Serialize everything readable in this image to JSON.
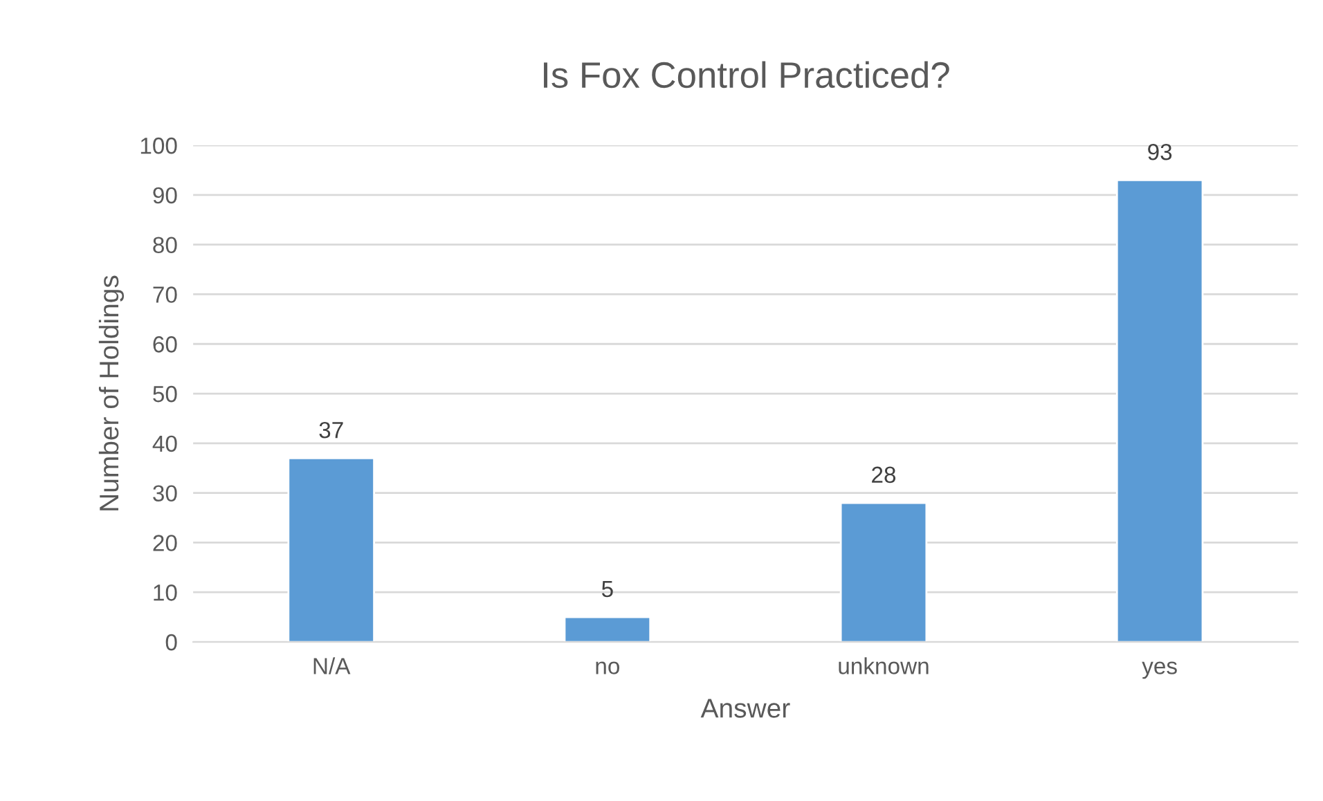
{
  "chart_data": {
    "type": "bar",
    "title": "Is Fox Control Practiced?",
    "xlabel": "Answer",
    "ylabel": "Number of Holdings",
    "categories": [
      "N/A",
      "no",
      "unknown",
      "yes"
    ],
    "values": [
      37,
      5,
      28,
      93
    ],
    "color": "#5b9bd5",
    "ylim": [
      0,
      100
    ],
    "yticks": [
      0,
      10,
      20,
      30,
      40,
      50,
      60,
      70,
      80,
      90,
      100
    ],
    "grid": "y",
    "data_labels": true
  }
}
